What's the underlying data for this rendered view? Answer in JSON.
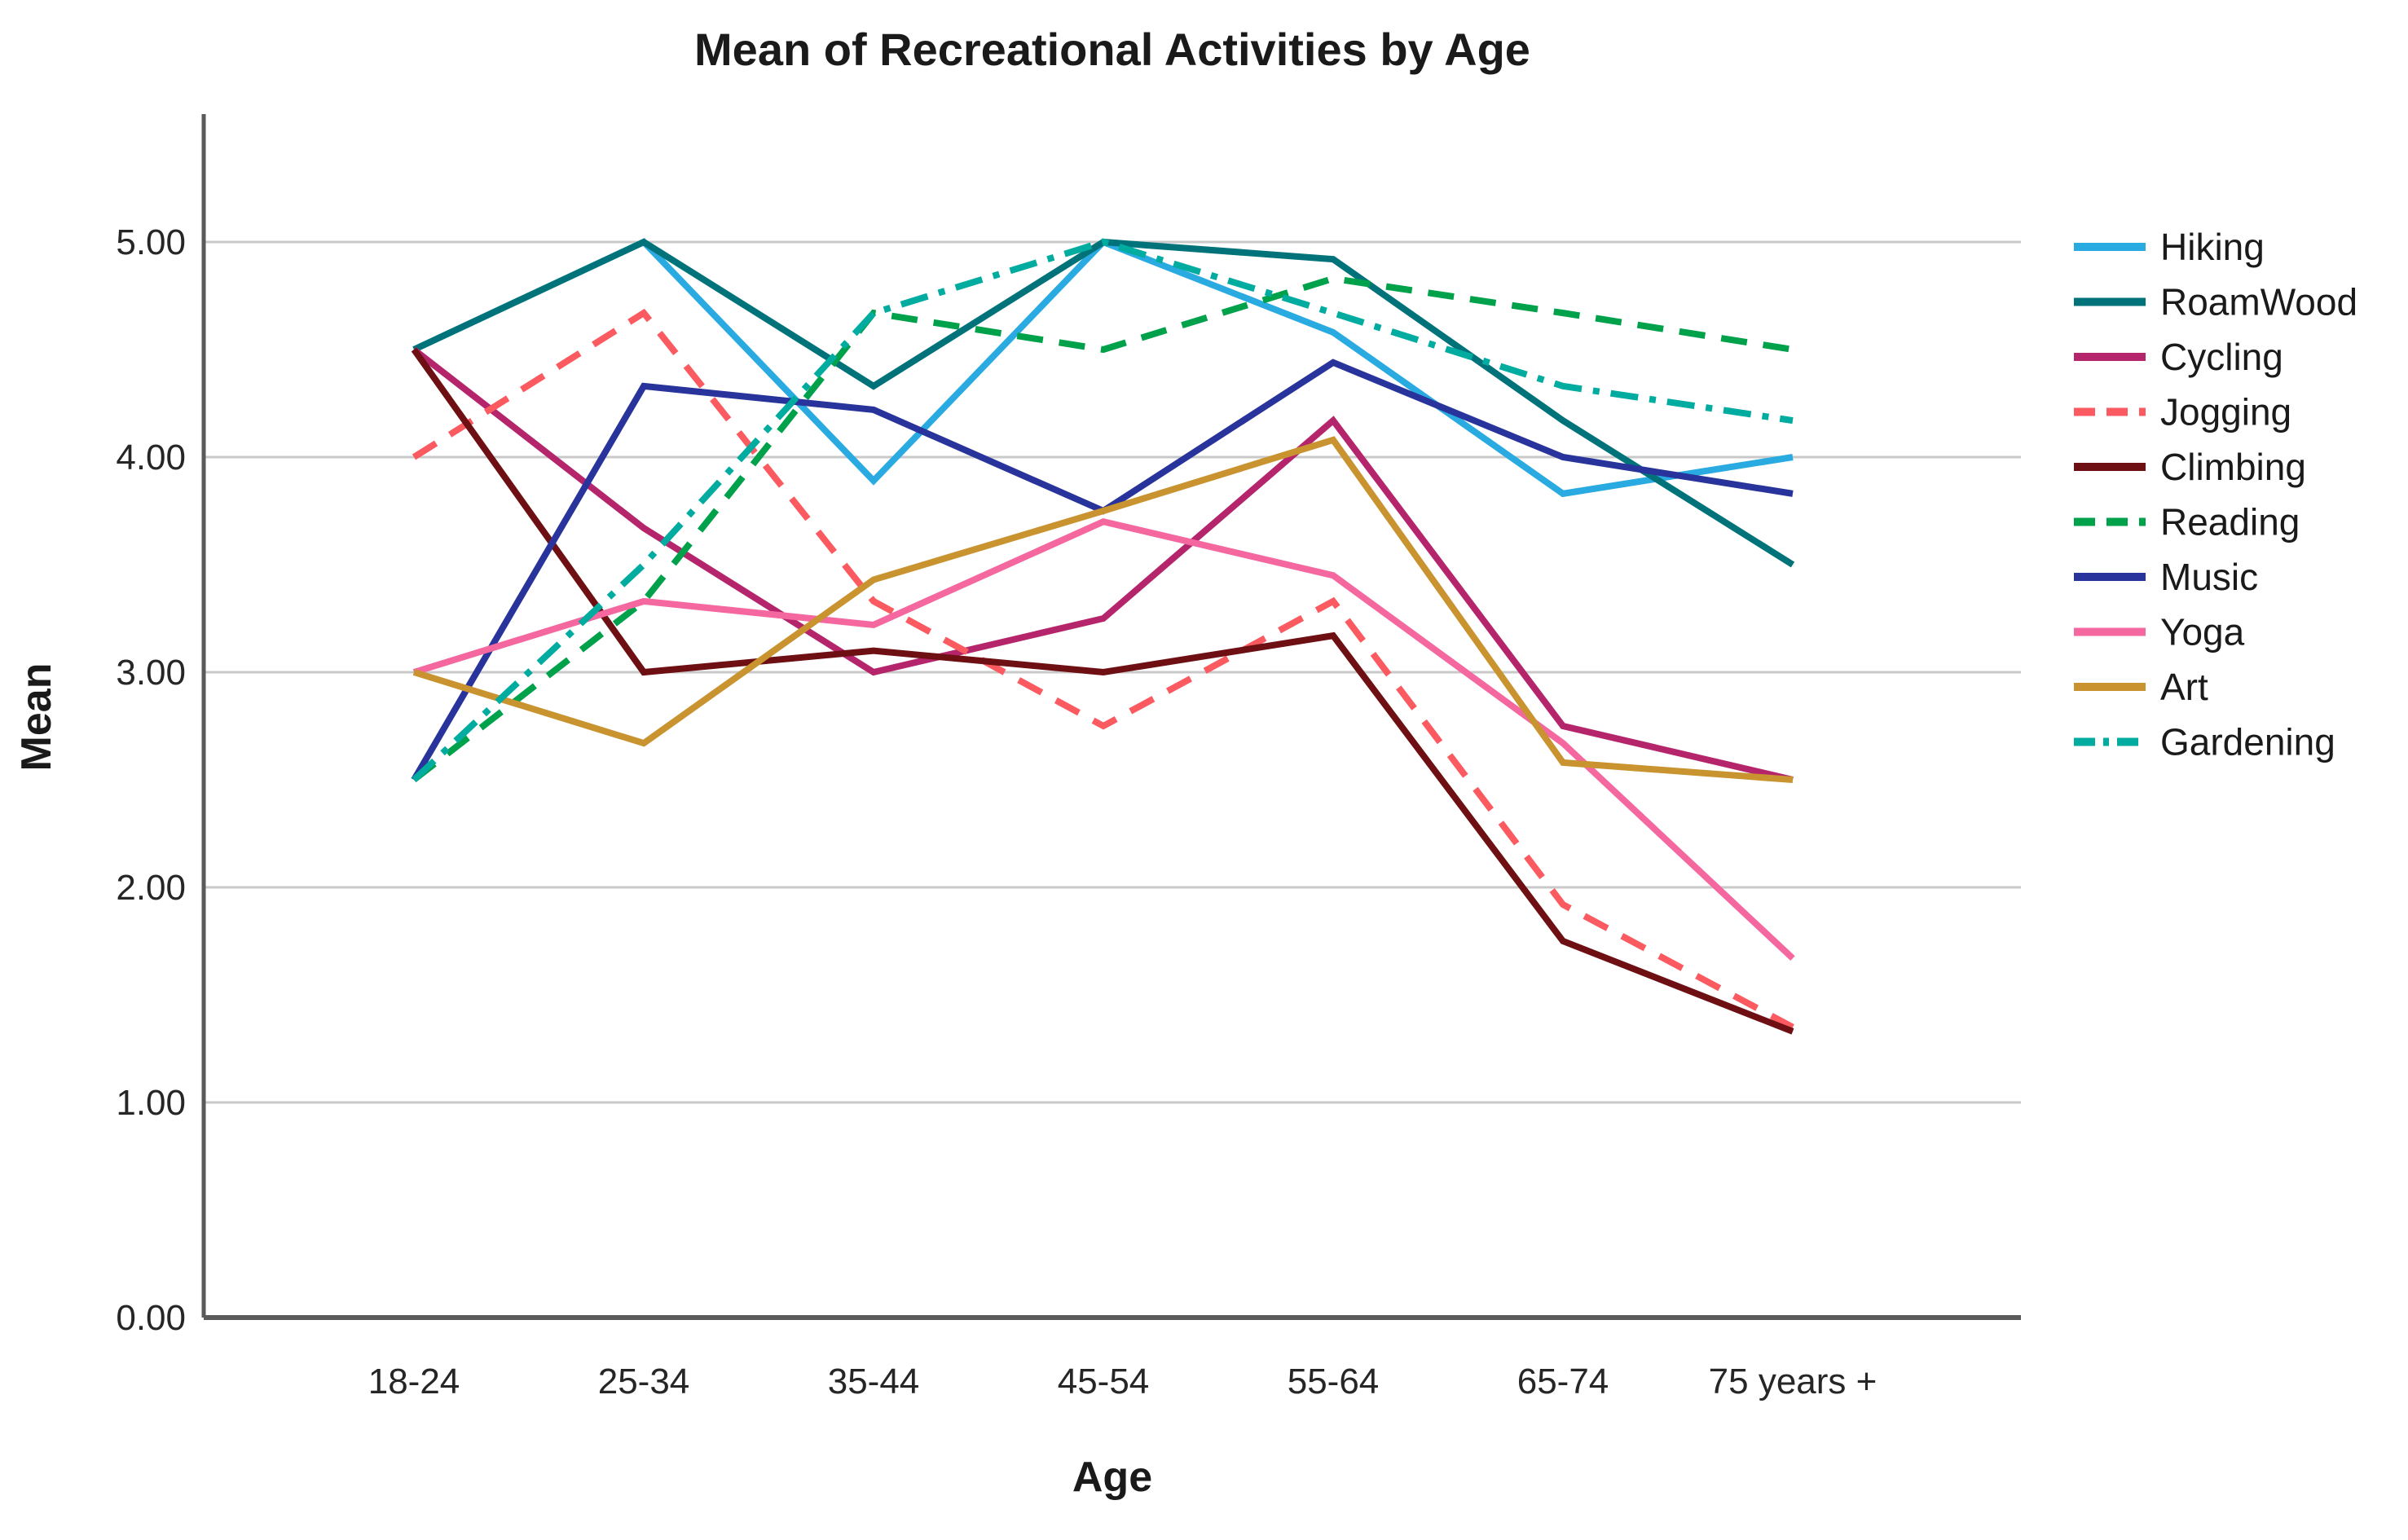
{
  "chart_data": {
    "type": "line",
    "title": "Mean of Recreational Activities by Age",
    "xlabel": "Age",
    "ylabel": "Mean",
    "ylim": [
      0,
      5
    ],
    "y_ticks": [
      "0.00",
      "1.00",
      "2.00",
      "3.00",
      "4.00",
      "5.00"
    ],
    "grid": "horizontal",
    "legend_position": "right",
    "categories": [
      "18-24",
      "25-34",
      "35-44",
      "45-54",
      "55-64",
      "65-74",
      "75 years +"
    ],
    "series": [
      {
        "name": "Hiking",
        "color": "#29abe2",
        "style": "solid",
        "values": [
          4.5,
          5.0,
          3.89,
          5.0,
          4.58,
          3.83,
          4.0
        ]
      },
      {
        "name": "RoamWood",
        "color": "#00737a",
        "style": "solid",
        "values": [
          4.5,
          5.0,
          4.33,
          5.0,
          4.92,
          4.17,
          3.5
        ]
      },
      {
        "name": "Cycling",
        "color": "#b5256c",
        "style": "solid",
        "values": [
          4.5,
          3.67,
          3.0,
          3.25,
          4.17,
          2.75,
          2.5
        ]
      },
      {
        "name": "Jogging",
        "color": "#fa5a60",
        "style": "dashed",
        "values": [
          4.0,
          4.67,
          3.33,
          2.75,
          3.33,
          1.92,
          1.35
        ]
      },
      {
        "name": "Climbing",
        "color": "#6e1013",
        "style": "solid",
        "values": [
          4.5,
          3.0,
          3.1,
          3.0,
          3.17,
          1.75,
          1.33
        ]
      },
      {
        "name": "Reading",
        "color": "#00a14b",
        "style": "dashed",
        "values": [
          2.5,
          3.33,
          4.67,
          4.5,
          4.83,
          4.67,
          4.5
        ]
      },
      {
        "name": "Music",
        "color": "#28349b",
        "style": "solid",
        "values": [
          2.5,
          4.33,
          4.22,
          3.75,
          4.44,
          4.0,
          3.83
        ]
      },
      {
        "name": "Yoga",
        "color": "#f4679f",
        "style": "solid",
        "values": [
          3.0,
          3.33,
          3.22,
          3.7,
          3.45,
          2.67,
          1.67
        ]
      },
      {
        "name": "Art",
        "color": "#c9932f",
        "style": "solid",
        "values": [
          3.0,
          2.67,
          3.43,
          3.75,
          4.08,
          2.58,
          2.5
        ]
      },
      {
        "name": "Gardening",
        "color": "#00aba0",
        "style": "dashdot",
        "values": [
          2.5,
          3.5,
          4.67,
          5.0,
          4.67,
          4.33,
          4.17
        ]
      }
    ]
  },
  "colors": {
    "gridline": "#c9c9c9",
    "axis_spine": "#5a5a5a",
    "background": "#ffffff"
  }
}
